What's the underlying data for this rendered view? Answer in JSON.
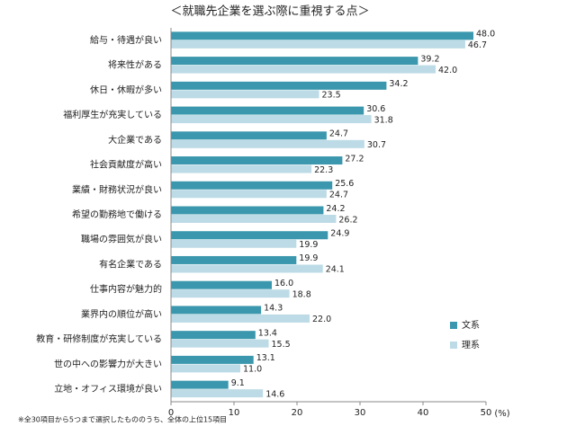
{
  "chart_data": {
    "type": "hbar",
    "title": "＜就職先企業を選ぶ際に重視する点＞",
    "x_label": "(%)",
    "note": "※全30項目から5つまで選択したもののうち、全体の上位15項目",
    "categories": [
      "給与・待遇が良い",
      "将来性がある",
      "休日・休暇が多い",
      "福利厚生が充実している",
      "大企業である",
      "社会貢献度が高い",
      "業績・財務状況が良い",
      "希望の勤務地で働ける",
      "職場の雰囲気が良い",
      "有名企業である",
      "仕事内容が魅力的",
      "業界内の順位が高い",
      "教育・研修制度が充実している",
      "世の中への影響力が大きい",
      "立地・オフィス環境が良い"
    ],
    "series": [
      {
        "name": "文系",
        "color": "#3b97ad",
        "values": [
          48.0,
          39.2,
          34.2,
          30.6,
          24.7,
          27.2,
          25.6,
          24.2,
          24.9,
          19.9,
          16.0,
          14.3,
          13.4,
          13.1,
          9.1
        ],
        "value_labels": [
          "48.0",
          "39.2",
          "34.2",
          "30.6",
          "24.7",
          "27.2",
          "25.6",
          "24.2",
          "24.9",
          "19.9",
          "16.0",
          "14.3",
          "13.4",
          "13.1",
          "9.1"
        ]
      },
      {
        "name": "理系",
        "color": "#bddbe6",
        "values": [
          46.7,
          42.0,
          23.5,
          31.8,
          30.7,
          22.3,
          24.7,
          26.2,
          19.9,
          24.1,
          18.8,
          22.0,
          15.5,
          11.0,
          14.6
        ],
        "value_labels": [
          "46.7",
          "42.0",
          "23.5",
          "31.8",
          "30.7",
          "22.3",
          "24.7",
          "26.2",
          "19.9",
          "24.1",
          "18.8",
          "22.0",
          "15.5",
          "11.0",
          "14.6"
        ]
      }
    ],
    "xlim": [
      0,
      50
    ],
    "xticks": [
      0,
      10,
      20,
      30,
      40,
      50
    ],
    "grid": false,
    "legend": "right"
  }
}
